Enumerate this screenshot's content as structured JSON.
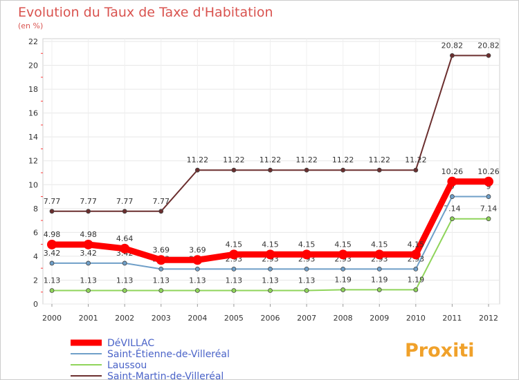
{
  "chart_data": {
    "type": "line",
    "title": "Evolution du Taux de Taxe d'Habitation",
    "subtitle": "(en %)",
    "xlabel": "",
    "ylabel": "",
    "categories": [
      "2000",
      "2001",
      "2002",
      "2003",
      "2004",
      "2005",
      "2006",
      "2007",
      "2008",
      "2009",
      "2010",
      "2011",
      "2012"
    ],
    "ylim": [
      0,
      22
    ],
    "yticks": [
      0,
      2,
      4,
      6,
      8,
      10,
      12,
      14,
      16,
      18,
      20,
      22
    ],
    "grid": true,
    "legend_position": "bottom-left",
    "series": [
      {
        "name": "Saint-Martin-de-Villeréal",
        "color": "#6b2e2e",
        "values": [
          7.77,
          7.77,
          7.77,
          7.77,
          11.22,
          11.22,
          11.22,
          11.22,
          11.22,
          11.22,
          11.22,
          20.82,
          20.82
        ],
        "labels": [
          "7.77",
          "7.77",
          "7.77",
          "7.77",
          "11.22",
          "11.22",
          "11.22",
          "11.22",
          "11.22",
          "11.22",
          "11.22",
          "20.82",
          "20.82"
        ]
      },
      {
        "name": "Laussou",
        "color": "#8fd45a",
        "values": [
          1.13,
          1.13,
          1.13,
          1.13,
          1.13,
          1.13,
          1.13,
          1.13,
          1.19,
          1.19,
          1.19,
          7.14,
          7.14
        ],
        "labels": [
          "1.13",
          "1.13",
          "1.13",
          "1.13",
          "1.13",
          "1.13",
          "1.13",
          "1.13",
          "1.19",
          "1.19",
          "1.19",
          "7.14",
          "7.14"
        ]
      },
      {
        "name": "Saint-Étienne-de-Villeréal",
        "color": "#6f9fc8",
        "values": [
          3.42,
          3.42,
          3.42,
          2.93,
          2.93,
          2.93,
          2.93,
          2.93,
          2.93,
          2.93,
          2.93,
          9,
          9
        ],
        "labels": [
          "3.42",
          "3.42",
          "3.42",
          "2.93",
          "2.93",
          "2.93",
          "2.93",
          "2.93",
          "2.93",
          "2.93",
          "2.93",
          "9",
          "9"
        ]
      },
      {
        "name": "DéVILLAC",
        "color": "#ff0000",
        "values": [
          4.98,
          4.98,
          4.64,
          3.69,
          3.69,
          4.15,
          4.15,
          4.15,
          4.15,
          4.15,
          4.15,
          10.26,
          10.26
        ],
        "labels": [
          "4.98",
          "4.98",
          "4.64",
          "3.69",
          "3.69",
          "4.15",
          "4.15",
          "4.15",
          "4.15",
          "4.15",
          "4.15",
          "10.26",
          "10.26"
        ]
      }
    ],
    "legend_order": [
      "DéVILLAC",
      "Saint-Étienne-de-Villeréal",
      "Laussou",
      "Saint-Martin-de-Villeréal"
    ]
  },
  "branding": {
    "logo_text": "Proxiti"
  }
}
